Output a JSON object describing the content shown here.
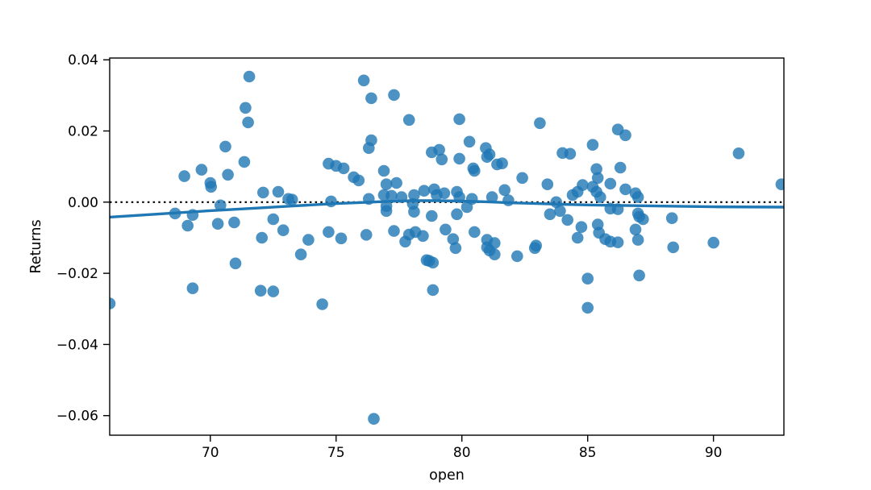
{
  "figure": {
    "background": "#ffffff"
  },
  "chart_data": {
    "type": "scatter",
    "title": "",
    "xlabel": "open",
    "ylabel": "Returns",
    "xlim": [
      66.0,
      92.8
    ],
    "ylim": [
      -0.0655,
      0.0405
    ],
    "grid": false,
    "legend": null,
    "xticks": [
      70,
      75,
      80,
      85,
      90
    ],
    "xtick_labels": [
      "70",
      "75",
      "80",
      "85",
      "90"
    ],
    "yticks": [
      0.04,
      0.02,
      0.0,
      -0.02,
      -0.04,
      -0.06
    ],
    "ytick_labels": [
      "0.04",
      "0.02",
      "0.00",
      "−0.02",
      "−0.04",
      "−0.06"
    ],
    "marker_color": "#1f77b4",
    "marker_alpha": 0.8,
    "marker_radius_px": 7.3,
    "line_color": "#1f77b4",
    "axis_color": "#000000",
    "zero_line": {
      "y": 0,
      "style": "dotted",
      "color": "#000000"
    },
    "points": [
      [
        66.0,
        -0.0285
      ],
      [
        68.6,
        -0.0032
      ],
      [
        68.97,
        0.0073
      ],
      [
        69.1,
        -0.0066
      ],
      [
        69.3,
        -0.0036
      ],
      [
        69.3,
        -0.0242
      ],
      [
        69.65,
        0.0091
      ],
      [
        70.0,
        0.0054
      ],
      [
        70.03,
        0.0043
      ],
      [
        70.3,
        -0.0061
      ],
      [
        70.4,
        -0.0009
      ],
      [
        70.6,
        0.0156
      ],
      [
        70.7,
        0.0077
      ],
      [
        70.95,
        -0.0057
      ],
      [
        71.0,
        -0.0172
      ],
      [
        71.35,
        0.0113
      ],
      [
        71.4,
        0.0265
      ],
      [
        71.5,
        0.0224
      ],
      [
        71.55,
        0.0353
      ],
      [
        72.0,
        -0.0249
      ],
      [
        72.05,
        -0.01
      ],
      [
        72.1,
        0.0027
      ],
      [
        72.5,
        -0.0048
      ],
      [
        72.5,
        -0.0251
      ],
      [
        72.7,
        0.0029
      ],
      [
        72.9,
        -0.0079
      ],
      [
        73.1,
        0.0009
      ],
      [
        73.25,
        0.0007
      ],
      [
        73.6,
        -0.0147
      ],
      [
        73.9,
        -0.0106
      ],
      [
        74.45,
        -0.0287
      ],
      [
        74.7,
        0.0108
      ],
      [
        74.7,
        -0.0084
      ],
      [
        74.8,
        0.0002
      ],
      [
        75.0,
        0.0102
      ],
      [
        75.2,
        -0.0102
      ],
      [
        75.3,
        0.0095
      ],
      [
        75.7,
        0.007
      ],
      [
        75.9,
        0.0061
      ],
      [
        76.1,
        0.0342
      ],
      [
        76.2,
        -0.0092
      ],
      [
        76.3,
        0.0152
      ],
      [
        76.3,
        0.0009
      ],
      [
        76.4,
        0.0292
      ],
      [
        76.4,
        0.0174
      ],
      [
        76.5,
        -0.0609
      ],
      [
        76.9,
        0.0088
      ],
      [
        76.9,
        0.002
      ],
      [
        77.0,
        0.005
      ],
      [
        77.0,
        -0.0011
      ],
      [
        77.0,
        -0.0025
      ],
      [
        77.2,
        0.0018
      ],
      [
        77.3,
        0.0301
      ],
      [
        77.3,
        -0.0081
      ],
      [
        77.4,
        0.0054
      ],
      [
        77.6,
        0.0014
      ],
      [
        77.75,
        -0.0111
      ],
      [
        77.9,
        0.0231
      ],
      [
        77.9,
        -0.0091
      ],
      [
        78.05,
        -0.0005
      ],
      [
        78.1,
        0.002
      ],
      [
        78.1,
        -0.0027
      ],
      [
        78.15,
        -0.0084
      ],
      [
        78.45,
        -0.0095
      ],
      [
        78.5,
        0.0032
      ],
      [
        78.6,
        -0.0163
      ],
      [
        78.7,
        -0.0165
      ],
      [
        78.8,
        0.014
      ],
      [
        78.8,
        -0.0039
      ],
      [
        78.85,
        -0.017
      ],
      [
        78.85,
        -0.0247
      ],
      [
        78.9,
        0.0036
      ],
      [
        79.0,
        0.002
      ],
      [
        79.1,
        0.0147
      ],
      [
        79.2,
        0.012
      ],
      [
        79.3,
        0.0025
      ],
      [
        79.35,
        -0.0077
      ],
      [
        79.65,
        -0.0104
      ],
      [
        79.75,
        -0.0129
      ],
      [
        79.8,
        0.0029
      ],
      [
        79.8,
        -0.0034
      ],
      [
        79.9,
        0.0233
      ],
      [
        79.9,
        0.0122
      ],
      [
        79.9,
        0.0014
      ],
      [
        80.2,
        -0.0014
      ],
      [
        80.3,
        0.017
      ],
      [
        80.4,
        0.0009
      ],
      [
        80.45,
        0.0095
      ],
      [
        80.5,
        0.0088
      ],
      [
        80.5,
        -0.0084
      ],
      [
        80.95,
        0.0152
      ],
      [
        81.0,
        0.0127
      ],
      [
        81.0,
        -0.0106
      ],
      [
        81.0,
        -0.0127
      ],
      [
        81.1,
        0.0134
      ],
      [
        81.1,
        -0.0136
      ],
      [
        81.2,
        0.0014
      ],
      [
        81.3,
        -0.0115
      ],
      [
        81.3,
        -0.0147
      ],
      [
        81.4,
        0.0106
      ],
      [
        81.6,
        0.0109
      ],
      [
        81.7,
        0.0034
      ],
      [
        81.85,
        0.0005
      ],
      [
        82.2,
        -0.0152
      ],
      [
        82.4,
        0.0068
      ],
      [
        82.9,
        -0.0129
      ],
      [
        82.95,
        -0.0122
      ],
      [
        83.1,
        0.0222
      ],
      [
        83.4,
        0.005
      ],
      [
        83.5,
        -0.0034
      ],
      [
        83.75,
        0.0
      ],
      [
        83.9,
        -0.0025
      ],
      [
        84.0,
        0.0138
      ],
      [
        84.2,
        -0.005
      ],
      [
        84.3,
        0.0136
      ],
      [
        84.4,
        0.002
      ],
      [
        84.6,
        0.0029
      ],
      [
        84.6,
        -0.01
      ],
      [
        84.75,
        -0.007
      ],
      [
        84.8,
        0.0048
      ],
      [
        85.0,
        -0.0215
      ],
      [
        85.0,
        -0.0297
      ],
      [
        85.2,
        0.0161
      ],
      [
        85.2,
        0.0043
      ],
      [
        85.35,
        0.0093
      ],
      [
        85.35,
        0.0029
      ],
      [
        85.4,
        0.0068
      ],
      [
        85.4,
        -0.0063
      ],
      [
        85.45,
        -0.0086
      ],
      [
        85.5,
        0.0014
      ],
      [
        85.7,
        -0.0104
      ],
      [
        85.9,
        0.0052
      ],
      [
        85.9,
        -0.0018
      ],
      [
        85.9,
        -0.0111
      ],
      [
        86.2,
        0.0204
      ],
      [
        86.2,
        -0.002
      ],
      [
        86.2,
        -0.0113
      ],
      [
        86.3,
        0.0097
      ],
      [
        86.5,
        0.0188
      ],
      [
        86.5,
        0.0036
      ],
      [
        86.9,
        0.0025
      ],
      [
        86.9,
        -0.0077
      ],
      [
        87.0,
        0.0014
      ],
      [
        87.0,
        -0.0032
      ],
      [
        87.0,
        -0.0106
      ],
      [
        87.05,
        -0.0041
      ],
      [
        87.05,
        -0.0206
      ],
      [
        87.2,
        -0.0048
      ],
      [
        88.35,
        -0.0045
      ],
      [
        88.4,
        -0.0127
      ],
      [
        90.0,
        -0.0114
      ],
      [
        91.0,
        0.0137
      ],
      [
        92.7,
        0.005
      ]
    ],
    "lowess_line": {
      "x": [
        66,
        68,
        70,
        72,
        73,
        74,
        75,
        76,
        77,
        78,
        79,
        80,
        81,
        82,
        83,
        84,
        85,
        86,
        88,
        90,
        92.8
      ],
      "y": [
        -0.0042,
        -0.0033,
        -0.0024,
        -0.0016,
        -0.0012,
        -0.0008,
        -0.0004,
        -0.0001,
        0.0002,
        0.0004,
        0.0004,
        0.0003,
        0.0001,
        -0.0002,
        -0.0004,
        -0.0006,
        -0.0008,
        -0.0009,
        -0.0011,
        -0.0013,
        -0.0014
      ]
    }
  }
}
